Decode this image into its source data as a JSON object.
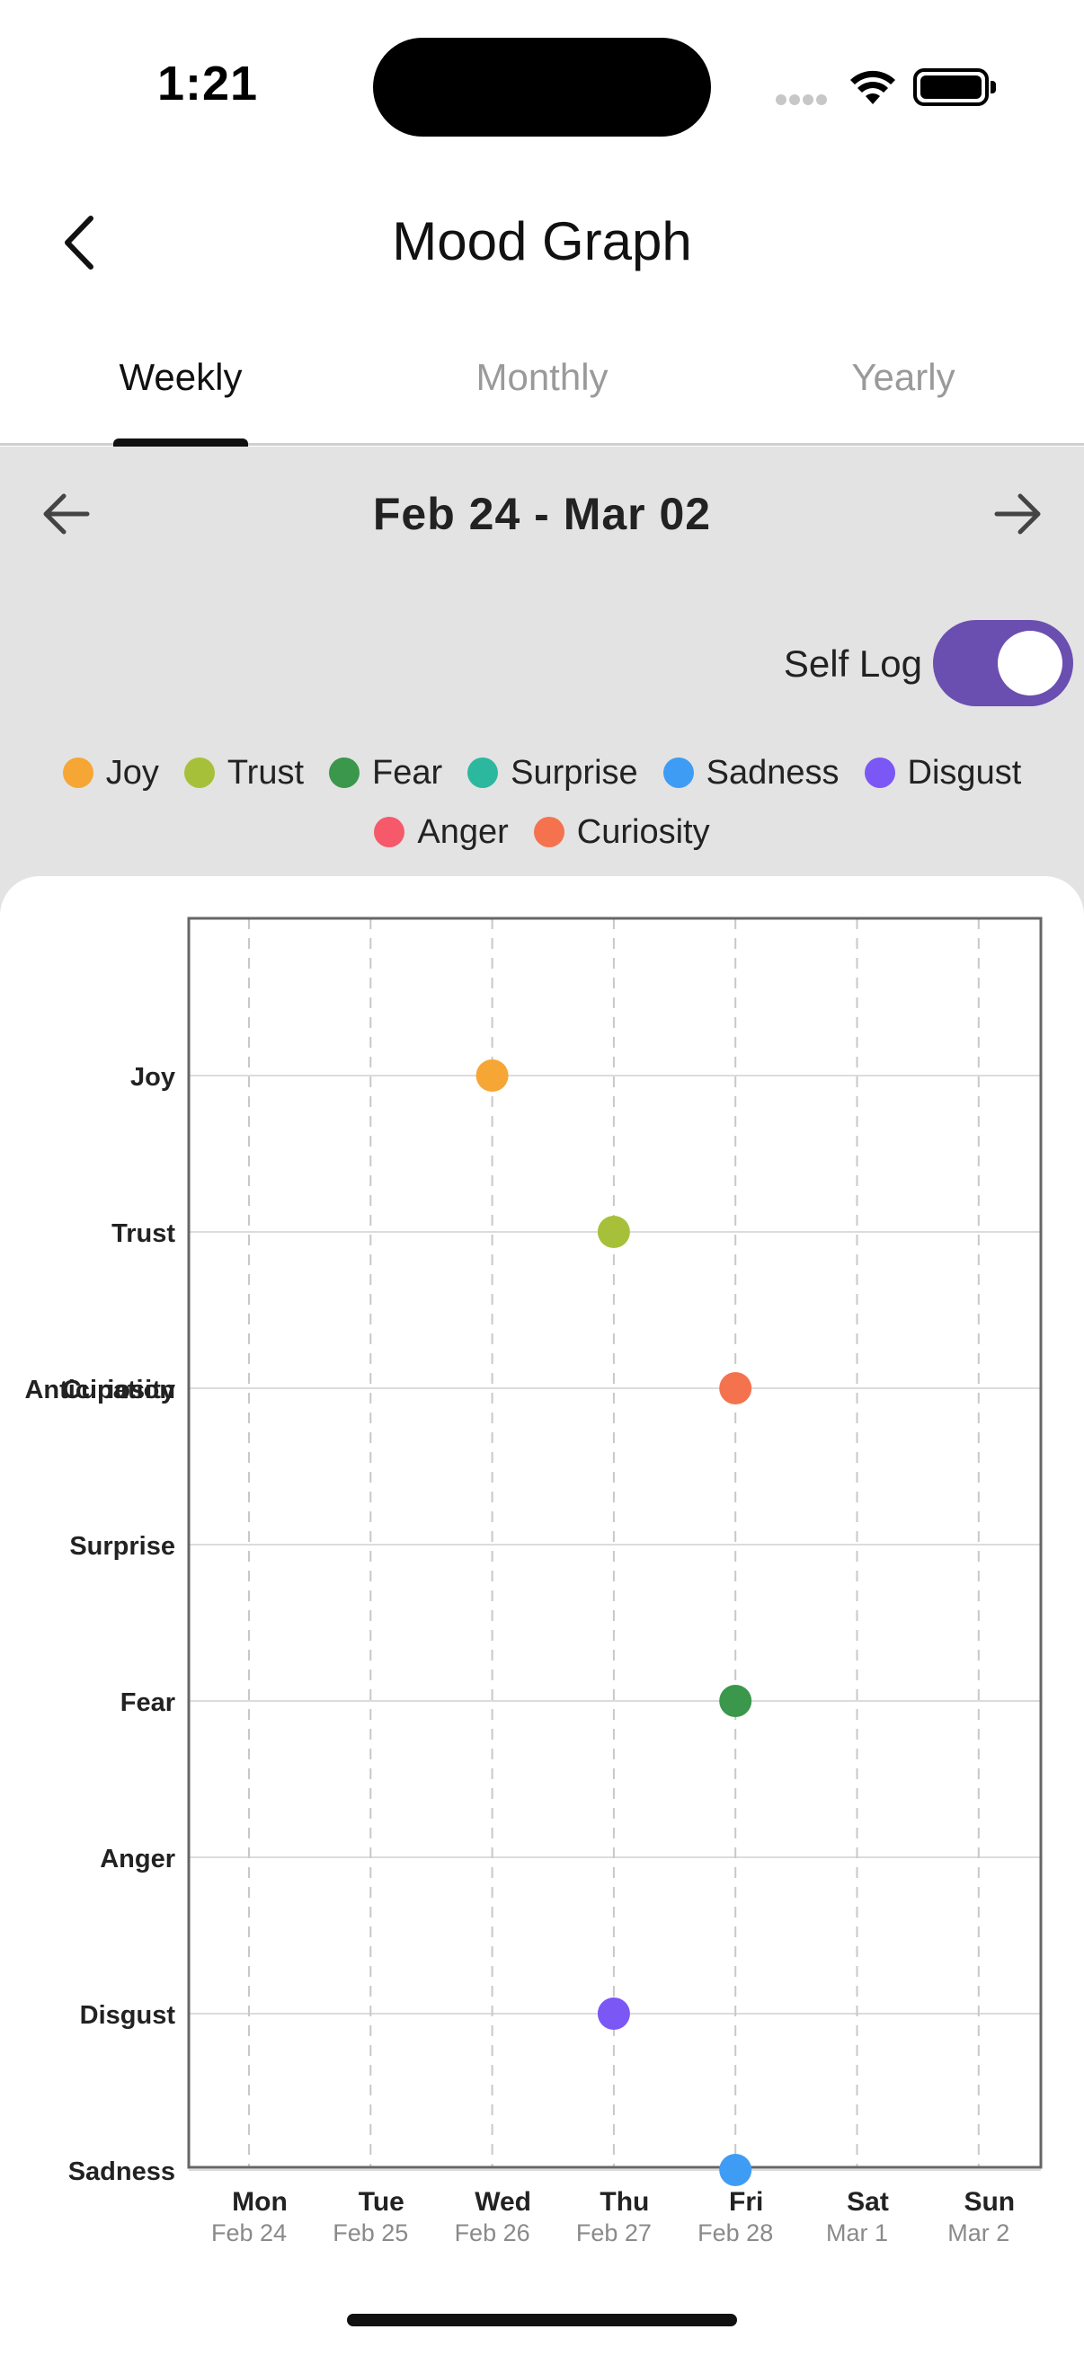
{
  "status_bar": {
    "time": "1:21"
  },
  "header": {
    "title": "Mood Graph"
  },
  "tabs": [
    {
      "label": "Weekly",
      "active": true
    },
    {
      "label": "Monthly",
      "active": false
    },
    {
      "label": "Yearly",
      "active": false
    }
  ],
  "date_nav": {
    "range": "Feb 24 - Mar 02"
  },
  "self_log": {
    "label": "Self Log",
    "on": true
  },
  "legend": [
    {
      "name": "Joy",
      "color": "#F5A634"
    },
    {
      "name": "Trust",
      "color": "#A7C03A"
    },
    {
      "name": "Fear",
      "color": "#3A974B"
    },
    {
      "name": "Surprise",
      "color": "#2BB89E"
    },
    {
      "name": "Sadness",
      "color": "#3F9CF5"
    },
    {
      "name": "Disgust",
      "color": "#7B57F5"
    },
    {
      "name": "Anger",
      "color": "#F5596A"
    },
    {
      "name": "Curiosity",
      "color": "#F5724F"
    }
  ],
  "chart_data": {
    "type": "scatter",
    "y_categories": [
      "Joy",
      "Trust",
      "Anticipation",
      "Surprise",
      "Fear",
      "Anger",
      "Disgust",
      "Sadness"
    ],
    "y_overlap_label": "Curiosity",
    "x_days": [
      "Mon",
      "Tue",
      "Wed",
      "Thu",
      "Fri",
      "Sat",
      "Sun"
    ],
    "x_dates": [
      "Feb 24",
      "Feb 25",
      "Feb 26",
      "Feb 27",
      "Feb 28",
      "Mar 1",
      "Mar 2"
    ],
    "grid": true,
    "points": [
      {
        "day": "Wed",
        "emotion": "Joy",
        "color": "#F5A634"
      },
      {
        "day": "Thu",
        "emotion": "Trust",
        "color": "#A7C03A"
      },
      {
        "day": "Fri",
        "emotion": "Curiosity",
        "color": "#F5724F"
      },
      {
        "day": "Fri",
        "emotion": "Fear",
        "color": "#3A974B"
      },
      {
        "day": "Thu",
        "emotion": "Disgust",
        "color": "#7B57F5"
      },
      {
        "day": "Fri",
        "emotion": "Sadness",
        "color": "#3F9CF5"
      }
    ]
  }
}
